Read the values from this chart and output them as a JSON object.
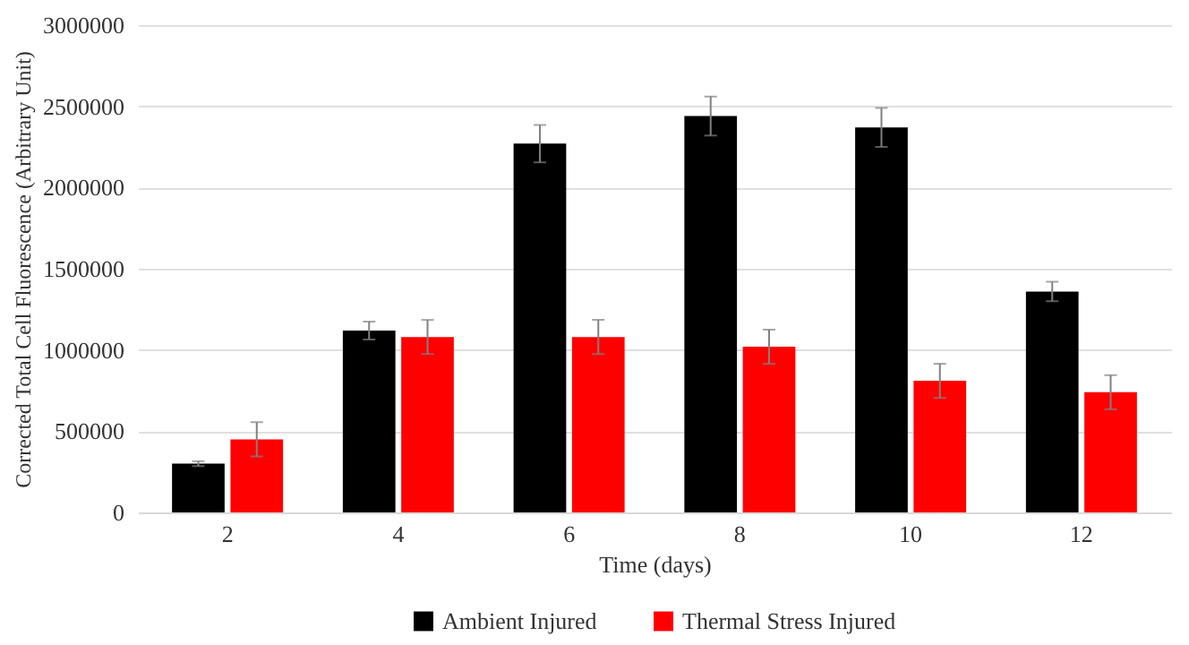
{
  "chart_data": {
    "type": "bar",
    "xlabel": "Time (days)",
    "ylabel": "Corrected Total Cell Fluorescence (Arbitrary Unit)",
    "categories": [
      "2",
      "4",
      "6",
      "8",
      "10",
      "12"
    ],
    "series": [
      {
        "name": "Ambient Injured",
        "color": "#000000",
        "values": [
          300000,
          1120000,
          2270000,
          2440000,
          2370000,
          1360000
        ],
        "errors": [
          15000,
          55000,
          115000,
          120000,
          120000,
          60000
        ]
      },
      {
        "name": "Thermal Stress Injured",
        "color": "#ff0000",
        "values": [
          450000,
          1080000,
          1080000,
          1020000,
          810000,
          740000
        ],
        "errors": [
          105000,
          105000,
          105000,
          105000,
          105000,
          105000
        ]
      }
    ],
    "ylim": [
      0,
      3000000
    ],
    "yticks": [
      0,
      500000,
      1000000,
      1500000,
      2000000,
      2500000,
      3000000
    ],
    "grid": "y",
    "legend": "bottom"
  }
}
